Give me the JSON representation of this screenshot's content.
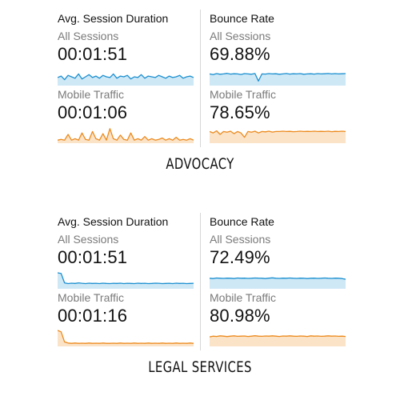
{
  "colors": {
    "blue": "#1a8fcf",
    "blue_fill": "#cfe8f6",
    "orange": "#ec8a1c",
    "orange_fill": "#fbe3c8"
  },
  "sections": [
    {
      "heading": "ADVOCACY",
      "avg_session": {
        "title": "Avg. Session Duration",
        "all_label": "All Sessions",
        "all_value": "00:01:51",
        "mobile_label": "Mobile Traffic",
        "mobile_value": "00:01:06"
      },
      "bounce": {
        "title": "Bounce Rate",
        "all_label": "All Sessions",
        "all_value": "69.88%",
        "mobile_label": "Mobile Traffic",
        "mobile_value": "78.65%"
      }
    },
    {
      "heading": "LEGAL SERVICES",
      "avg_session": {
        "title": "Avg. Session Duration",
        "all_label": "All Sessions",
        "all_value": "00:01:51",
        "mobile_label": "Mobile Traffic",
        "mobile_value": "00:01:16"
      },
      "bounce": {
        "title": "Bounce Rate",
        "all_label": "All Sessions",
        "all_value": "72.49%",
        "mobile_label": "Mobile Traffic",
        "mobile_value": "80.98%"
      }
    }
  ],
  "chart_data": [
    {
      "type": "area",
      "series": [
        {
          "values": [
            0.45,
            0.55,
            0.3,
            0.6,
            0.5,
            0.4,
            0.7,
            0.35,
            0.5,
            0.65,
            0.45,
            0.55,
            0.4,
            0.6,
            0.5,
            0.45,
            0.7,
            0.4,
            0.55,
            0.5,
            0.6,
            0.35,
            0.5,
            0.45,
            0.65,
            0.4,
            0.55,
            0.5,
            0.45,
            0.6,
            0.5,
            0.4,
            0.55,
            0.45,
            0.5,
            0.6,
            0.4,
            0.5,
            0.55,
            0.45
          ]
        }
      ]
    },
    {
      "type": "area",
      "series": [
        {
          "values": [
            0.1,
            0.15,
            0.1,
            0.5,
            0.1,
            0.2,
            0.1,
            0.6,
            0.15,
            0.1,
            0.7,
            0.2,
            0.1,
            0.55,
            0.1,
            0.9,
            0.2,
            0.1,
            0.45,
            0.15,
            0.1,
            0.6,
            0.1,
            0.2,
            0.1,
            0.35,
            0.1,
            0.2,
            0.1,
            0.15,
            0.25,
            0.1,
            0.2,
            0.1,
            0.3,
            0.1,
            0.15,
            0.1,
            0.2,
            0.1
          ]
        }
      ]
    },
    {
      "type": "area",
      "series": [
        {
          "values": [
            0.7,
            0.65,
            0.72,
            0.68,
            0.7,
            0.74,
            0.69,
            0.71,
            0.7,
            0.66,
            0.72,
            0.7,
            0.68,
            0.73,
            0.2,
            0.7,
            0.69,
            0.72,
            0.7,
            0.71,
            0.68,
            0.7,
            0.73,
            0.69,
            0.71,
            0.7,
            0.72,
            0.68,
            0.7,
            0.71,
            0.69,
            0.72,
            0.7,
            0.71,
            0.73,
            0.7,
            0.72,
            0.7,
            0.71,
            0.72
          ]
        }
      ]
    },
    {
      "type": "area",
      "series": [
        {
          "values": [
            0.7,
            0.6,
            0.75,
            0.5,
            0.7,
            0.65,
            0.72,
            0.55,
            0.7,
            0.6,
            0.3,
            0.7,
            0.65,
            0.72,
            0.6,
            0.7,
            0.68,
            0.72,
            0.66,
            0.7,
            0.7,
            0.72,
            0.7,
            0.71,
            0.69,
            0.7,
            0.72,
            0.7,
            0.71,
            0.7,
            0.72,
            0.7,
            0.71,
            0.7,
            0.72,
            0.69,
            0.71,
            0.7,
            0.72,
            0.7
          ]
        }
      ]
    },
    {
      "type": "area",
      "series": [
        {
          "values": [
            1.0,
            0.95,
            0.3,
            0.25,
            0.28,
            0.26,
            0.3,
            0.27,
            0.25,
            0.28,
            0.26,
            0.27,
            0.25,
            0.28,
            0.26,
            0.25,
            0.27,
            0.26,
            0.28,
            0.25,
            0.27,
            0.26,
            0.25,
            0.28,
            0.26,
            0.27,
            0.25,
            0.26,
            0.28,
            0.27,
            0.25,
            0.26,
            0.27,
            0.25,
            0.28,
            0.26,
            0.27,
            0.25,
            0.26,
            0.27
          ]
        }
      ]
    },
    {
      "type": "area",
      "series": [
        {
          "values": [
            0.62,
            0.6,
            0.64,
            0.62,
            0.61,
            0.63,
            0.62,
            0.6,
            0.64,
            0.62,
            0.63,
            0.61,
            0.62,
            0.64,
            0.63,
            0.62,
            0.6,
            0.63,
            0.65,
            0.62,
            0.61,
            0.63,
            0.62,
            0.64,
            0.62,
            0.61,
            0.63,
            0.62,
            0.6,
            0.62,
            0.63,
            0.61,
            0.62,
            0.64,
            0.62,
            0.61,
            0.63,
            0.62,
            0.6,
            0.55
          ]
        }
      ]
    },
    {
      "type": "area",
      "series": [
        {
          "values": [
            1.0,
            0.9,
            0.2,
            0.12,
            0.1,
            0.12,
            0.1,
            0.11,
            0.1,
            0.12,
            0.1,
            0.11,
            0.1,
            0.12,
            0.1,
            0.1,
            0.11,
            0.1,
            0.12,
            0.1,
            0.11,
            0.1,
            0.12,
            0.1,
            0.11,
            0.1,
            0.12,
            0.1,
            0.11,
            0.1,
            0.12,
            0.1,
            0.11,
            0.1,
            0.12,
            0.1,
            0.11,
            0.1,
            0.12,
            0.1
          ]
        }
      ]
    },
    {
      "type": "area",
      "series": [
        {
          "values": [
            0.55,
            0.6,
            0.58,
            0.62,
            0.6,
            0.57,
            0.6,
            0.62,
            0.59,
            0.6,
            0.61,
            0.58,
            0.6,
            0.63,
            0.6,
            0.59,
            0.61,
            0.6,
            0.62,
            0.6,
            0.58,
            0.61,
            0.6,
            0.62,
            0.6,
            0.59,
            0.61,
            0.6,
            0.58,
            0.62,
            0.6,
            0.61,
            0.59,
            0.6,
            0.62,
            0.6,
            0.61,
            0.59,
            0.6,
            0.58
          ]
        }
      ]
    }
  ]
}
